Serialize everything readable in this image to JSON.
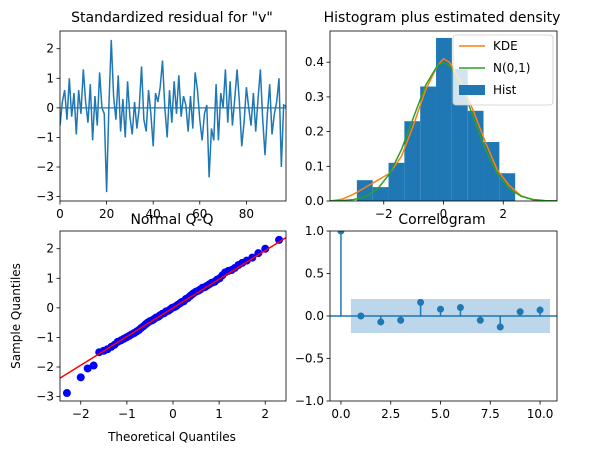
{
  "chart_data": [
    {
      "type": "line",
      "title": "Standardized residual for \"v\"",
      "xlim": [
        0,
        97
      ],
      "ylim": [
        -3.15,
        2.6
      ],
      "xticks": [
        0,
        20,
        40,
        60,
        80
      ],
      "yticks": [
        -3,
        -2,
        -1,
        0,
        1,
        2
      ],
      "zero_line": true,
      "series": [
        {
          "color": "#1f77b4",
          "values": [
            -0.6,
            0.2,
            0.6,
            -0.4,
            1.0,
            -0.3,
            0.5,
            -0.9,
            0.6,
            -0.2,
            1.3,
            0.2,
            -0.5,
            0.8,
            -1.1,
            0.4,
            -0.6,
            1.2,
            0.0,
            -0.2,
            -2.85,
            0.1,
            2.3,
            0.4,
            -0.4,
            1.1,
            -0.8,
            0.3,
            -1.0,
            0.9,
            -0.3,
            -0.9,
            0.2,
            -0.7,
            0.0,
            1.4,
            -0.4,
            -0.8,
            0.6,
            -0.2,
            -1.3,
            0.5,
            0.2,
            0.7,
            1.6,
            0.0,
            -1.0,
            0.6,
            -0.5,
            0.9,
            -0.2,
            1.1,
            -0.3,
            0.4,
            0.1,
            -0.8,
            0.4,
            -0.7,
            1.2,
            0.6,
            -0.4,
            -1.1,
            -0.2,
            0.1,
            -2.35,
            -0.7,
            -1.1,
            0.8,
            -1.1,
            0.5,
            0.0,
            1.3,
            -0.5,
            0.9,
            -0.6,
            0.3,
            1.3,
            0.2,
            -1.3,
            -0.5,
            0.7,
            0.0,
            -0.6,
            0.5,
            -0.8,
            0.3,
            1.3,
            -0.4,
            -1.6,
            -0.2,
            0.8,
            -0.9,
            -0.2,
            0.2,
            1.0,
            -2.0,
            0.1,
            0.05
          ]
        }
      ]
    },
    {
      "type": "bar",
      "title": "Histogram plus estimated density",
      "xlim": [
        -3.8,
        3.8
      ],
      "ylim": [
        0,
        0.49
      ],
      "xticks": [
        -2,
        0,
        2
      ],
      "yticks": [
        0.0,
        0.1,
        0.2,
        0.3,
        0.4
      ],
      "legend_position": "top-right",
      "legend": [
        "KDE",
        "N(0,1)",
        "Hist"
      ],
      "hist": {
        "color": "#1f77b4",
        "bins": [
          -2.9,
          -2.37,
          -1.84,
          -1.31,
          -0.78,
          -0.25,
          0.28,
          0.81,
          1.34,
          1.87,
          2.4
        ],
        "heights": [
          0.06,
          0.04,
          0.11,
          0.23,
          0.33,
          0.47,
          0.38,
          0.26,
          0.17,
          0.08
        ]
      },
      "series": [
        {
          "name": "KDE",
          "color": "#ff7f0e",
          "x": [
            -3.8,
            -3.4,
            -3.0,
            -2.6,
            -2.2,
            -1.8,
            -1.4,
            -1.0,
            -0.6,
            -0.2,
            0.0,
            0.2,
            0.6,
            1.0,
            1.4,
            1.8,
            2.2,
            2.6,
            3.0,
            3.4,
            3.8
          ],
          "values": [
            0.0,
            0.005,
            0.02,
            0.04,
            0.06,
            0.08,
            0.13,
            0.22,
            0.32,
            0.39,
            0.41,
            0.4,
            0.34,
            0.26,
            0.17,
            0.09,
            0.045,
            0.015,
            0.003,
            0.0,
            0.0
          ]
        },
        {
          "name": "N(0,1)",
          "color": "#2ca02c",
          "x": [
            -3.8,
            -3.4,
            -3.0,
            -2.6,
            -2.2,
            -1.8,
            -1.4,
            -1.0,
            -0.6,
            -0.2,
            0.0,
            0.2,
            0.6,
            1.0,
            1.4,
            1.8,
            2.2,
            2.6,
            3.0,
            3.4,
            3.8
          ],
          "values": [
            0.0003,
            0.0012,
            0.0044,
            0.0136,
            0.0355,
            0.079,
            0.1497,
            0.242,
            0.3332,
            0.391,
            0.3989,
            0.391,
            0.3332,
            0.242,
            0.1497,
            0.079,
            0.0355,
            0.0136,
            0.0044,
            0.0012,
            0.0003
          ]
        }
      ]
    },
    {
      "type": "scatter",
      "title": "Normal Q-Q",
      "xlabel": "Theoretical Quantiles",
      "ylabel": "Sample Quantiles",
      "xlim": [
        -2.45,
        2.45
      ],
      "ylim": [
        -3.15,
        2.6
      ],
      "xticks": [
        -2,
        -1,
        0,
        1,
        2
      ],
      "yticks": [
        -3,
        -2,
        -1,
        0,
        1,
        2
      ],
      "points_color": "#0000ff",
      "line_color": "#ff0000",
      "reference_line": {
        "slope": 0.97,
        "intercept": 0.0
      },
      "x": [
        -2.3,
        -2.0,
        -1.85,
        -1.72,
        -1.6,
        -1.5,
        -1.42,
        -1.34,
        -1.27,
        -1.2,
        -1.13,
        -1.07,
        -1.01,
        -0.95,
        -0.9,
        -0.84,
        -0.79,
        -0.74,
        -0.69,
        -0.64,
        -0.59,
        -0.55,
        -0.5,
        -0.45,
        -0.41,
        -0.37,
        -0.32,
        -0.28,
        -0.23,
        -0.19,
        -0.15,
        -0.1,
        -0.06,
        -0.02,
        0.02,
        0.06,
        0.1,
        0.15,
        0.19,
        0.23,
        0.28,
        0.32,
        0.37,
        0.41,
        0.45,
        0.5,
        0.55,
        0.59,
        0.64,
        0.69,
        0.74,
        0.79,
        0.84,
        0.9,
        0.95,
        1.01,
        1.07,
        1.13,
        1.2,
        1.27,
        1.34,
        1.42,
        1.5,
        1.6,
        1.72,
        1.85,
        2.0,
        2.3
      ],
      "values": [
        -2.88,
        -2.35,
        -2.05,
        -1.95,
        -1.5,
        -1.45,
        -1.4,
        -1.32,
        -1.25,
        -1.15,
        -1.1,
        -1.05,
        -1.0,
        -0.95,
        -0.9,
        -0.85,
        -0.8,
        -0.75,
        -0.68,
        -0.62,
        -0.55,
        -0.5,
        -0.45,
        -0.42,
        -0.38,
        -0.33,
        -0.3,
        -0.25,
        -0.2,
        -0.18,
        -0.12,
        -0.1,
        -0.05,
        0.0,
        0.02,
        0.05,
        0.1,
        0.15,
        0.2,
        0.22,
        0.3,
        0.33,
        0.4,
        0.45,
        0.5,
        0.55,
        0.58,
        0.62,
        0.68,
        0.7,
        0.75,
        0.8,
        0.85,
        0.88,
        0.95,
        1.0,
        1.1,
        1.2,
        1.25,
        1.28,
        1.35,
        1.45,
        1.52,
        1.6,
        1.7,
        1.85,
        2.0,
        2.3
      ]
    },
    {
      "type": "bar",
      "title": "Correlogram",
      "xlim": [
        -0.55,
        10.85
      ],
      "ylim": [
        -1.0,
        1.0
      ],
      "xticks": [
        0.0,
        2.5,
        5.0,
        7.5,
        10.0
      ],
      "yticks": [
        -1.0,
        -0.5,
        0.0,
        0.5,
        1.0
      ],
      "color": "#1f77b4",
      "band_color": "#a6c8e4",
      "confidence_band": {
        "x_start": 0.5,
        "x_end": 10.5,
        "lower": -0.2,
        "upper": 0.2
      },
      "categories": [
        0,
        1,
        2,
        3,
        4,
        5,
        6,
        7,
        8,
        9,
        10
      ],
      "values": [
        1.0,
        0.0,
        -0.07,
        -0.05,
        0.16,
        0.08,
        0.1,
        -0.05,
        -0.13,
        0.05,
        0.07
      ]
    }
  ]
}
